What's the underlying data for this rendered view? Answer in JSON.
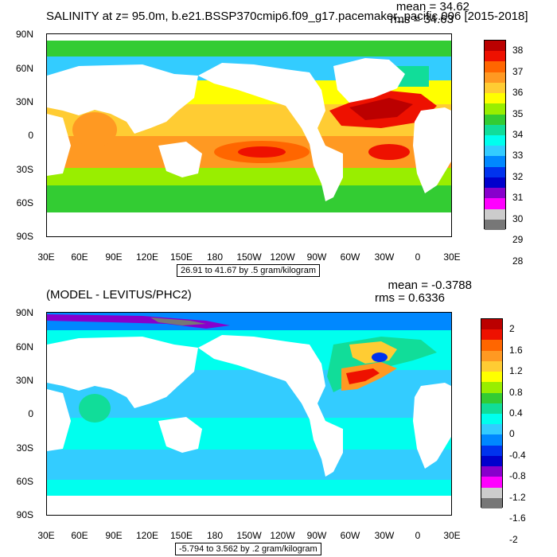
{
  "panels": [
    {
      "title": "SALINITY at z=  95.0m, b.e21.BSSP370cmip6.f09_g17.pacemaker_pacific.006 [2015-2018]",
      "mean": "mean = 34.62",
      "rms": "rms = 34.63",
      "info": "26.91 to 41.67 by .5 gram/kilogram",
      "colorbar_labels": [
        "38",
        "37",
        "36",
        "35",
        "34",
        "33",
        "32",
        "31",
        "30",
        "29",
        "28"
      ],
      "colors": [
        "#bb0000",
        "#ee1100",
        "#ff6600",
        "#ff9922",
        "#ffcc33",
        "#ffff00",
        "#99ee00",
        "#33cc33",
        "#11dd99",
        "#00ffee",
        "#33ccff",
        "#0088ff",
        "#0033ee",
        "#0000cc",
        "#8800cc",
        "#ff00ff",
        "#cccccc",
        "#777777"
      ]
    },
    {
      "title": "(MODEL - LEVITUS/PHC2)",
      "mean": "mean = -0.3788",
      "rms": "rms = 0.6336",
      "info": "-5.794 to 3.562 by .2 gram/kilogram",
      "colorbar_labels": [
        "2",
        "1.6",
        "1.2",
        "0.8",
        "0.4",
        "0",
        "-0.4",
        "-0.8",
        "-1.2",
        "-1.6",
        "-2"
      ],
      "colors": [
        "#bb0000",
        "#ee1100",
        "#ff6600",
        "#ff9922",
        "#ffcc33",
        "#ffff00",
        "#99ee00",
        "#33cc33",
        "#11dd99",
        "#00ffee",
        "#33ccff",
        "#0088ff",
        "#0033ee",
        "#0000cc",
        "#8800cc",
        "#ff00ff",
        "#cccccc",
        "#777777"
      ]
    }
  ],
  "lat_labels": [
    "90N",
    "60N",
    "30N",
    "0",
    "30S",
    "60S",
    "90S"
  ],
  "lon_labels": [
    "30E",
    "60E",
    "90E",
    "120E",
    "150E",
    "180",
    "150W",
    "120W",
    "90W",
    "60W",
    "30W",
    "0",
    "30E"
  ]
}
